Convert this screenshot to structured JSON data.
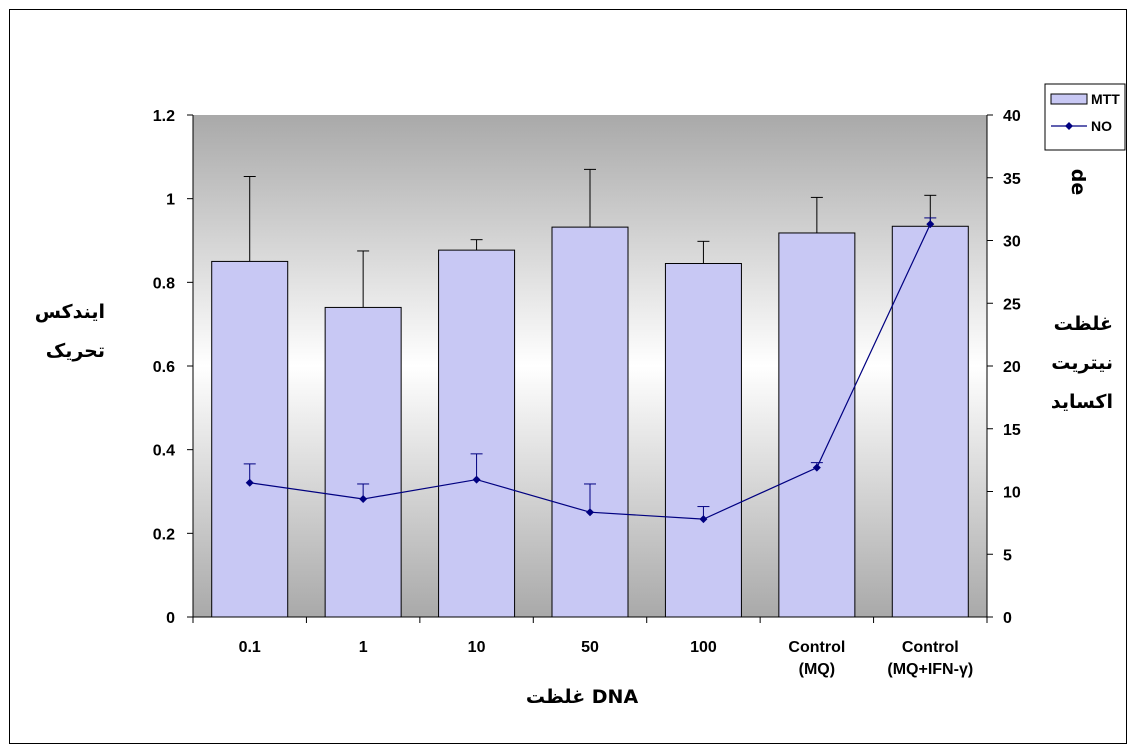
{
  "chart_data": {
    "type": "bar",
    "categories": [
      "0.1",
      "1",
      "10",
      "50",
      "100",
      "Control (MQ)",
      "Control (MQ+IFN-γ)"
    ],
    "category_lines": [
      [
        "0.1"
      ],
      [
        "1"
      ],
      [
        "10"
      ],
      [
        "50"
      ],
      [
        "100"
      ],
      [
        "Control",
        "(MQ)"
      ],
      [
        "Control",
        "(MQ+IFN-γ)"
      ]
    ],
    "xlabel": "غلظت DNA",
    "ylabel_left": [
      "ایندکس",
      "تحریک"
    ],
    "ylabel_right_top": "de",
    "ylabel_right": [
      "غلظت",
      "نیتریت",
      "اکساید"
    ],
    "y_left": {
      "lim": [
        0,
        1.2
      ],
      "ticks": [
        "0",
        "0.2",
        "0.4",
        "0.6",
        "0.8",
        "1",
        "1.2"
      ]
    },
    "y_right": {
      "lim": [
        0,
        40
      ],
      "ticks": [
        "0",
        "5",
        "10",
        "15",
        "20",
        "25",
        "30",
        "35",
        "40"
      ]
    },
    "series": [
      {
        "name": "MTT",
        "kind": "bar",
        "axis": "left",
        "values": [
          0.85,
          0.74,
          0.877,
          0.932,
          0.845,
          0.918,
          0.934
        ],
        "error_upper": [
          1.053,
          0.875,
          0.902,
          1.07,
          0.898,
          1.003,
          1.008
        ]
      },
      {
        "name": "NO",
        "kind": "line",
        "axis": "right",
        "values": [
          10.7,
          9.4,
          10.95,
          8.35,
          7.8,
          11.9,
          31.3
        ],
        "error_upper": [
          12.2,
          10.6,
          13.0,
          10.6,
          8.8,
          12.3,
          31.8
        ]
      }
    ],
    "colors": {
      "bar_fill": "#c8c8f4",
      "bar_stroke": "#000000",
      "line": "#000080",
      "bg_light": "#ffffff",
      "bg_dark": "#a9a9a9"
    },
    "legend_position": "top-right"
  }
}
